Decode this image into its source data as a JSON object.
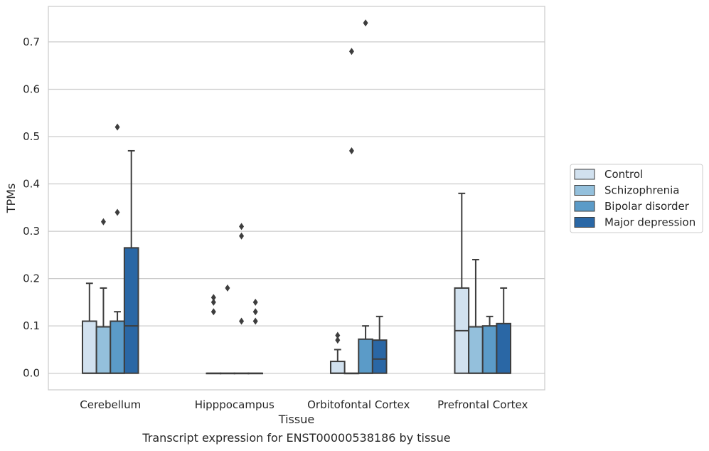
{
  "caption": "Transcript expression for ENST00000538186 by tissue",
  "chart_data": {
    "type": "box",
    "xlabel": "Tissue",
    "ylabel": "TPMs",
    "ylim": [
      -0.035,
      0.775
    ],
    "yticks": [
      0.0,
      0.1,
      0.2,
      0.3,
      0.4,
      0.5,
      0.6,
      0.7
    ],
    "ytick_labels": [
      "0.0",
      "0.1",
      "0.2",
      "0.3",
      "0.4",
      "0.5",
      "0.6",
      "0.7"
    ],
    "grid": "horizontal",
    "legend_position": "right",
    "categories": [
      "Cerebellum",
      "Hipppocampus",
      "Orbitofontal Cortex",
      "Prefrontal Cortex"
    ],
    "series": [
      {
        "name": "Control",
        "color": "#d1e1ef",
        "boxes": [
          {
            "min": 0.0,
            "q1": 0.0,
            "median": 0.0,
            "q3": 0.11,
            "max": 0.19,
            "outliers": []
          },
          {
            "min": 0.0,
            "q1": 0.0,
            "median": 0.0,
            "q3": 0.0,
            "max": 0.0,
            "outliers": [
              0.13,
              0.15,
              0.16
            ]
          },
          {
            "min": 0.0,
            "q1": 0.0,
            "median": 0.0,
            "q3": 0.025,
            "max": 0.05,
            "outliers": [
              0.07,
              0.08
            ]
          },
          {
            "min": 0.0,
            "q1": 0.0,
            "median": 0.09,
            "q3": 0.18,
            "max": 0.38,
            "outliers": []
          }
        ]
      },
      {
        "name": "Schizophrenia",
        "color": "#94c0dc",
        "boxes": [
          {
            "min": 0.0,
            "q1": 0.0,
            "median": 0.0,
            "q3": 0.098,
            "max": 0.18,
            "outliers": [
              0.32
            ]
          },
          {
            "min": 0.0,
            "q1": 0.0,
            "median": 0.0,
            "q3": 0.0,
            "max": 0.0,
            "outliers": [
              0.18
            ]
          },
          {
            "min": 0.0,
            "q1": 0.0,
            "median": 0.0,
            "q3": 0.0,
            "max": 0.0,
            "outliers": [
              0.47,
              0.68
            ]
          },
          {
            "min": 0.0,
            "q1": 0.0,
            "median": 0.0,
            "q3": 0.098,
            "max": 0.24,
            "outliers": []
          }
        ]
      },
      {
        "name": "Bipolar disorder",
        "color": "#5b9bc8",
        "boxes": [
          {
            "min": 0.0,
            "q1": 0.0,
            "median": 0.0,
            "q3": 0.11,
            "max": 0.13,
            "outliers": [
              0.34,
              0.52
            ]
          },
          {
            "min": 0.0,
            "q1": 0.0,
            "median": 0.0,
            "q3": 0.0,
            "max": 0.0,
            "outliers": [
              0.11,
              0.29,
              0.31
            ]
          },
          {
            "min": 0.0,
            "q1": 0.0,
            "median": 0.0,
            "q3": 0.072,
            "max": 0.1,
            "outliers": [
              0.74
            ]
          },
          {
            "min": 0.0,
            "q1": 0.0,
            "median": 0.0,
            "q3": 0.1,
            "max": 0.12,
            "outliers": []
          }
        ]
      },
      {
        "name": "Major depression",
        "color": "#2a67a5",
        "boxes": [
          {
            "min": 0.0,
            "q1": 0.0,
            "median": 0.1,
            "q3": 0.265,
            "max": 0.47,
            "outliers": []
          },
          {
            "min": 0.0,
            "q1": 0.0,
            "median": 0.0,
            "q3": 0.0,
            "max": 0.0,
            "outliers": [
              0.11,
              0.13,
              0.15
            ]
          },
          {
            "min": 0.0,
            "q1": 0.0,
            "median": 0.03,
            "q3": 0.07,
            "max": 0.12,
            "outliers": []
          },
          {
            "min": 0.0,
            "q1": 0.0,
            "median": 0.0,
            "q3": 0.105,
            "max": 0.18,
            "outliers": []
          }
        ]
      }
    ]
  }
}
